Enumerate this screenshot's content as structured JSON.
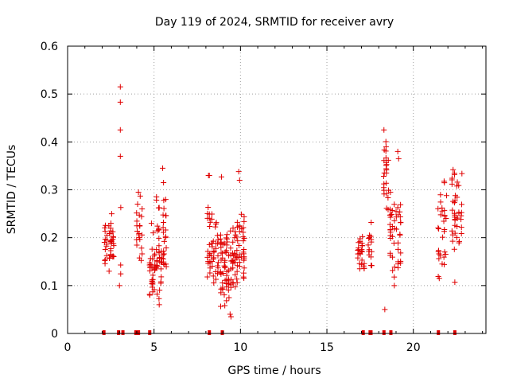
{
  "chart_data": {
    "type": "scatter",
    "title": "Day 119 of 2024, SRMTID for receiver avry",
    "xlabel": "GPS time / hours",
    "ylabel": "SRMTID / TECUs",
    "xlim": [
      0,
      24.2
    ],
    "ylim": [
      0,
      0.6
    ],
    "xticks": [
      0,
      5,
      10,
      15,
      20
    ],
    "xtick_labels": [
      "0",
      "5",
      "10",
      "15",
      "20"
    ],
    "yticks": [
      0,
      0.1,
      0.2,
      0.3,
      0.4,
      0.5,
      0.6
    ],
    "ytick_labels": [
      "0",
      "0.1",
      "0.2",
      "0.3",
      "0.4",
      "0.5",
      "0.6"
    ],
    "grid": true,
    "marker": "plus",
    "color": "#e00000",
    "zero_markers_x": [
      2.1,
      2.95,
      3.2,
      3.95,
      4.1,
      4.75,
      8.2,
      8.95,
      17.1,
      17.5,
      17.55,
      18.3,
      18.7,
      21.45,
      22.4
    ],
    "clusters": [
      {
        "x": [
          2.1,
          2.7
        ],
        "y": [
          0.14,
          0.24
        ],
        "n": 40,
        "extra": [
          [
            2.55,
            0.25
          ],
          [
            2.4,
            0.13
          ]
        ]
      },
      {
        "x": [
          3.0,
          3.1
        ],
        "y": [
          0.1,
          0.275
        ],
        "n": 3,
        "extra": [
          [
            3.05,
            0.515
          ],
          [
            3.05,
            0.483
          ],
          [
            3.05,
            0.425
          ],
          [
            3.05,
            0.37
          ],
          [
            3.0,
            0.1
          ]
        ]
      },
      {
        "x": [
          3.95,
          4.35
        ],
        "y": [
          0.13,
          0.29
        ],
        "n": 20,
        "extra": [
          [
            4.1,
            0.295
          ],
          [
            4.2,
            0.287
          ],
          [
            4.05,
            0.27
          ]
        ]
      },
      {
        "x": [
          4.7,
          5.1
        ],
        "y": [
          0.07,
          0.2
        ],
        "n": 30,
        "extra": [
          [
            4.85,
            0.23
          ],
          [
            4.95,
            0.21
          ]
        ]
      },
      {
        "x": [
          5.1,
          5.75
        ],
        "y": [
          0.06,
          0.3
        ],
        "n": 55,
        "extra": [
          [
            5.5,
            0.345
          ],
          [
            5.55,
            0.315
          ],
          [
            5.3,
            0.06
          ]
        ]
      },
      {
        "x": [
          8.05,
          8.75
        ],
        "y": [
          0.07,
          0.3
        ],
        "n": 50,
        "extra": [
          [
            8.15,
            0.33
          ],
          [
            8.2,
            0.33
          ],
          [
            8.9,
            0.327
          ]
        ]
      },
      {
        "x": [
          8.8,
          9.5
        ],
        "y": [
          0.04,
          0.24
        ],
        "n": 60,
        "extra": [
          [
            9.4,
            0.04
          ],
          [
            9.45,
            0.035
          ]
        ]
      },
      {
        "x": [
          9.5,
          10.25
        ],
        "y": [
          0.08,
          0.26
        ],
        "n": 60,
        "extra": [
          [
            9.9,
            0.338
          ],
          [
            9.95,
            0.32
          ]
        ]
      },
      {
        "x": [
          16.75,
          17.2
        ],
        "y": [
          0.12,
          0.215
        ],
        "n": 25,
        "extra": [
          [
            16.9,
            0.135
          ]
        ]
      },
      {
        "x": [
          17.35,
          17.65
        ],
        "y": [
          0.13,
          0.235
        ],
        "n": 15,
        "extra": []
      },
      {
        "x": [
          18.25,
          18.6
        ],
        "y": [
          0.24,
          0.42
        ],
        "n": 25,
        "extra": [
          [
            18.3,
            0.425
          ],
          [
            18.35,
            0.05
          ]
        ]
      },
      {
        "x": [
          18.6,
          19.3
        ],
        "y": [
          0.1,
          0.32
        ],
        "n": 45,
        "extra": [
          [
            19.1,
            0.38
          ],
          [
            19.15,
            0.365
          ],
          [
            18.9,
            0.1
          ]
        ]
      },
      {
        "x": [
          21.4,
          21.95
        ],
        "y": [
          0.11,
          0.33
        ],
        "n": 30,
        "extra": [
          [
            21.5,
            0.115
          ]
        ]
      },
      {
        "x": [
          22.2,
          22.85
        ],
        "y": [
          0.16,
          0.34
        ],
        "n": 40,
        "extra": [
          [
            22.4,
            0.107
          ],
          [
            22.3,
            0.342
          ]
        ]
      }
    ]
  }
}
